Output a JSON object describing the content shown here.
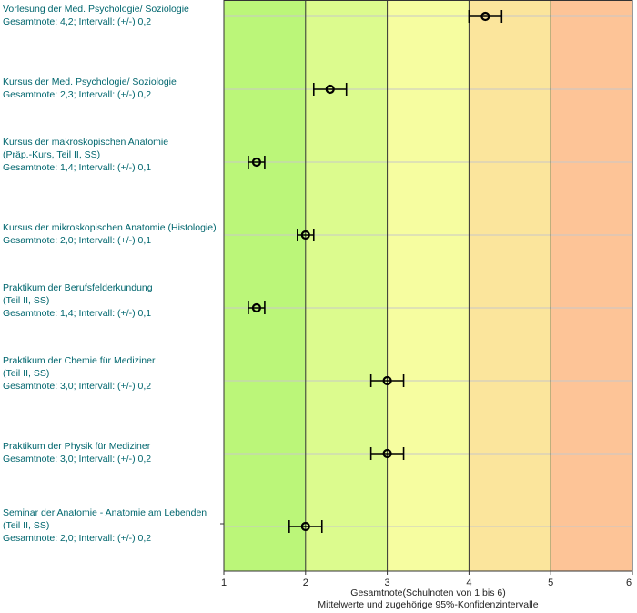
{
  "chart_data": {
    "type": "scatter",
    "xlabel": "Gesamtnote(Schulnoten von 1 bis 6)",
    "subtitle": "Mittelwerte und zugehörige 95%-Konfidenzintervalle",
    "xlim": [
      1,
      6
    ],
    "xticks": [
      "1",
      "2",
      "3",
      "4",
      "5",
      "6"
    ],
    "bands": [
      {
        "from": 1,
        "to": 2,
        "color": "#bbf679"
      },
      {
        "from": 2,
        "to": 3,
        "color": "#dcfb8e"
      },
      {
        "from": 3,
        "to": 4,
        "color": "#f6fda0"
      },
      {
        "from": 4,
        "to": 5,
        "color": "#fbe59c"
      },
      {
        "from": 5,
        "to": 6,
        "color": "#fdc497"
      }
    ],
    "items": [
      {
        "lines": [
          "Vorlesung der Med. Psychologie/ Soziologie",
          "Gesamtnote: 4,2;  Intervall: (+/-) 0,2"
        ],
        "mean": 4.2,
        "ci": 0.2
      },
      {
        "lines": [
          "Kursus der Med. Psychologie/ Soziologie",
          "Gesamtnote: 2,3;  Intervall: (+/-) 0,2"
        ],
        "mean": 2.3,
        "ci": 0.2
      },
      {
        "lines": [
          "Kursus der makroskopischen Anatomie",
          "(Präp.-Kurs, Teil II, SS)",
          "Gesamtnote: 1,4;  Intervall: (+/-) 0,1"
        ],
        "mean": 1.4,
        "ci": 0.1
      },
      {
        "lines": [
          "Kursus der mikroskopischen Anatomie (Histologie)",
          "Gesamtnote: 2,0;  Intervall: (+/-) 0,1"
        ],
        "mean": 2.0,
        "ci": 0.1
      },
      {
        "lines": [
          "Praktikum der Berufsfelderkundung",
          "(Teil II, SS)",
          "Gesamtnote: 1,4;  Intervall: (+/-) 0,1"
        ],
        "mean": 1.4,
        "ci": 0.1
      },
      {
        "lines": [
          "Praktikum der Chemie für Mediziner",
          "(Teil II, SS)",
          "Gesamtnote: 3,0;  Intervall: (+/-) 0,2"
        ],
        "mean": 3.0,
        "ci": 0.2
      },
      {
        "lines": [
          "Praktikum der Physik für Mediziner",
          "Gesamtnote: 3,0;  Intervall: (+/-) 0,2"
        ],
        "mean": 3.0,
        "ci": 0.2
      },
      {
        "lines": [
          "Seminar der Anatomie - Anatomie am Lebenden",
          "(Teil II, SS)",
          "Gesamtnote:  2,0; Intervall: (+/-) 0,2"
        ],
        "mean": 2.0,
        "ci": 0.2
      }
    ]
  }
}
